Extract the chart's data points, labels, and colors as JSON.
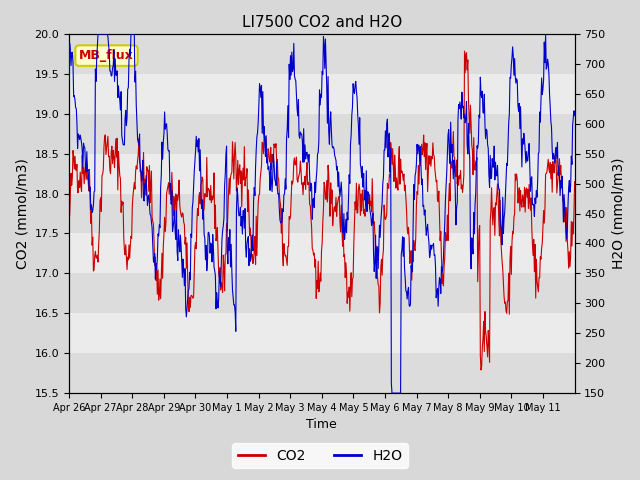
{
  "title": "LI7500 CO2 and H2O",
  "xlabel": "Time",
  "ylabel_left": "CO2 (mmol/m3)",
  "ylabel_right": "H2O (mmol/m3)",
  "co2_ylim": [
    15.5,
    20.0
  ],
  "h2o_ylim": [
    150,
    750
  ],
  "co2_yticks": [
    15.5,
    16.0,
    16.5,
    17.0,
    17.5,
    18.0,
    18.5,
    19.0,
    19.5,
    20.0
  ],
  "h2o_yticks": [
    150,
    200,
    250,
    300,
    350,
    400,
    450,
    500,
    550,
    600,
    650,
    700,
    750
  ],
  "co2_color": "#cc0000",
  "h2o_color": "#0000cc",
  "annotation_text": "MB_flux",
  "annotation_bg": "#ffffcc",
  "annotation_border": "#cccc00",
  "legend_co2": "CO2",
  "legend_h2o": "H2O",
  "n_days": 16,
  "xtick_positions": [
    0,
    1,
    2,
    3,
    4,
    5,
    6,
    7,
    8,
    9,
    10,
    11,
    12,
    13,
    14,
    15
  ],
  "xtick_labels": [
    "Apr 26",
    "Apr 27",
    "Apr 28",
    "Apr 29",
    "Apr 30",
    "May 1",
    "May 2",
    "May 3",
    "May 4",
    "May 5",
    "May 6",
    "May 7",
    "May 8",
    "May 9",
    "May 10",
    "May 11"
  ]
}
